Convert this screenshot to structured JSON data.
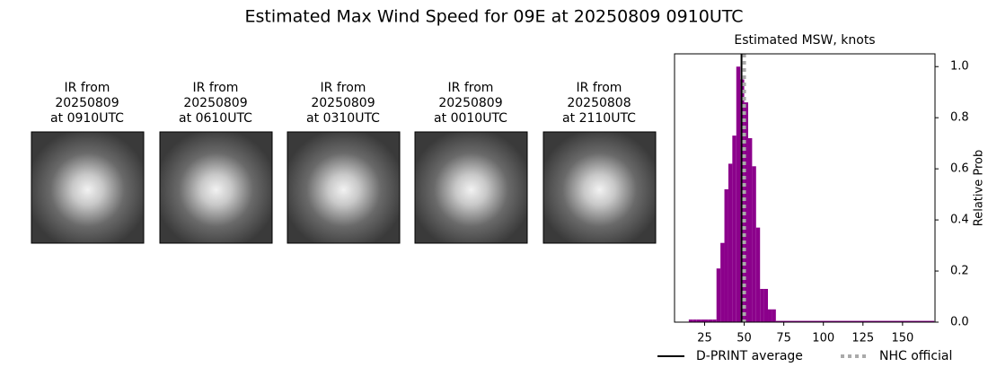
{
  "title": "Estimated Max Wind Speed for 09E at 20250809 0910UTC",
  "panels": [
    {
      "lines": [
        "IR from",
        "20250809",
        "at 0910UTC"
      ]
    },
    {
      "lines": [
        "IR from",
        "20250809",
        "at 0610UTC"
      ]
    },
    {
      "lines": [
        "IR from",
        "20250809",
        "at 0310UTC"
      ]
    },
    {
      "lines": [
        "IR from",
        "20250809",
        "at 0010UTC"
      ]
    },
    {
      "lines": [
        "IR from",
        "20250808",
        "at 2110UTC"
      ]
    }
  ],
  "chart_data": {
    "type": "histogram",
    "title": "Estimated MSW, knots",
    "y_label": "Relative Prob",
    "color": "#8b008b",
    "bins": [
      15,
      17.5,
      20,
      22.5,
      25,
      27.5,
      30,
      32.5,
      35,
      37.5,
      40,
      42.5,
      45,
      47.5,
      50,
      52.5,
      55,
      57.5,
      60,
      62.5,
      65,
      67.5,
      70,
      170
    ],
    "counts": [
      0.01,
      0.01,
      0.01,
      0.01,
      0.01,
      0.01,
      0.01,
      0.21,
      0.31,
      0.52,
      0.62,
      0.73,
      1.0,
      0.95,
      0.86,
      0.72,
      0.61,
      0.37,
      0.13,
      0.13,
      0.05,
      0.05,
      0.005
    ],
    "xlim": [
      6,
      170.5
    ],
    "ylim": [
      0,
      1.05
    ],
    "xticks": [
      25,
      50,
      75,
      100,
      125,
      150
    ],
    "yticks": [
      {
        "value": 0,
        "label": "0.0"
      },
      0.2,
      0.4,
      0.6,
      0.8,
      {
        "value": 1,
        "label": "1.0"
      }
    ],
    "lines": [
      {
        "name": "D-PRINT average",
        "x": 48.3,
        "color": "#000000",
        "style": "solid"
      },
      {
        "name": "NHC official",
        "x": 50,
        "color": "#aaaaaa",
        "style": "dotted"
      }
    ]
  }
}
